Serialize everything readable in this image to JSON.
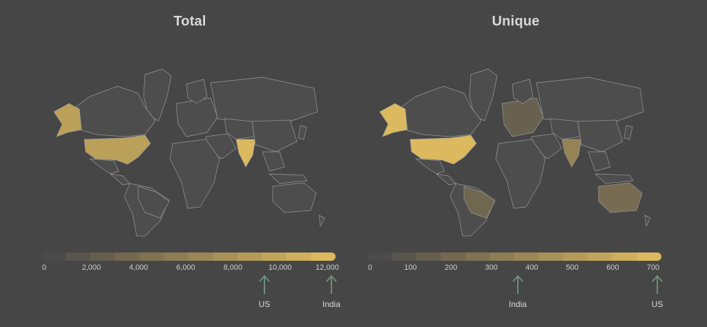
{
  "panels": [
    {
      "title": "Total",
      "legend_max": 12000,
      "ticks": [
        {
          "label": "0",
          "value": 0
        },
        {
          "label": "2,000",
          "value": 2000
        },
        {
          "label": "4,000",
          "value": 4000
        },
        {
          "label": "6,000",
          "value": 6000
        },
        {
          "label": "8,000",
          "value": 8000
        },
        {
          "label": "10,000",
          "value": 10000
        },
        {
          "label": "12,000",
          "value": 12000
        }
      ],
      "markers": [
        {
          "label": "US",
          "value": 9200
        },
        {
          "label": "India",
          "value": 12000
        }
      ],
      "highlights": [
        {
          "country": "United States",
          "level": 0.77
        },
        {
          "country": "Alaska",
          "level": 0.77
        },
        {
          "country": "India",
          "level": 1.0
        }
      ]
    },
    {
      "title": "Unique",
      "legend_max": 700,
      "ticks": [
        {
          "label": "0",
          "value": 0
        },
        {
          "label": "100",
          "value": 100
        },
        {
          "label": "200",
          "value": 200
        },
        {
          "label": "300",
          "value": 300
        },
        {
          "label": "400",
          "value": 400
        },
        {
          "label": "500",
          "value": 500
        },
        {
          "label": "600",
          "value": 600
        },
        {
          "label": "700",
          "value": 700
        }
      ],
      "markers": [
        {
          "label": "India",
          "value": 360
        },
        {
          "label": "US",
          "value": 700
        }
      ],
      "highlights": [
        {
          "country": "United States",
          "level": 1.0
        },
        {
          "country": "Alaska",
          "level": 1.0
        },
        {
          "country": "India",
          "level": 0.51
        },
        {
          "country": "Brazil",
          "level": 0.25
        },
        {
          "country": "Australia",
          "level": 0.3
        },
        {
          "country": "Europe",
          "level": 0.2
        }
      ]
    }
  ],
  "colors": {
    "background": "#464646",
    "land": "#4d4d4d",
    "border": "#9a9a9a",
    "scale_low": "#4b4b4b",
    "scale_high": "#dcb95e",
    "marker": "#6e8f78"
  }
}
